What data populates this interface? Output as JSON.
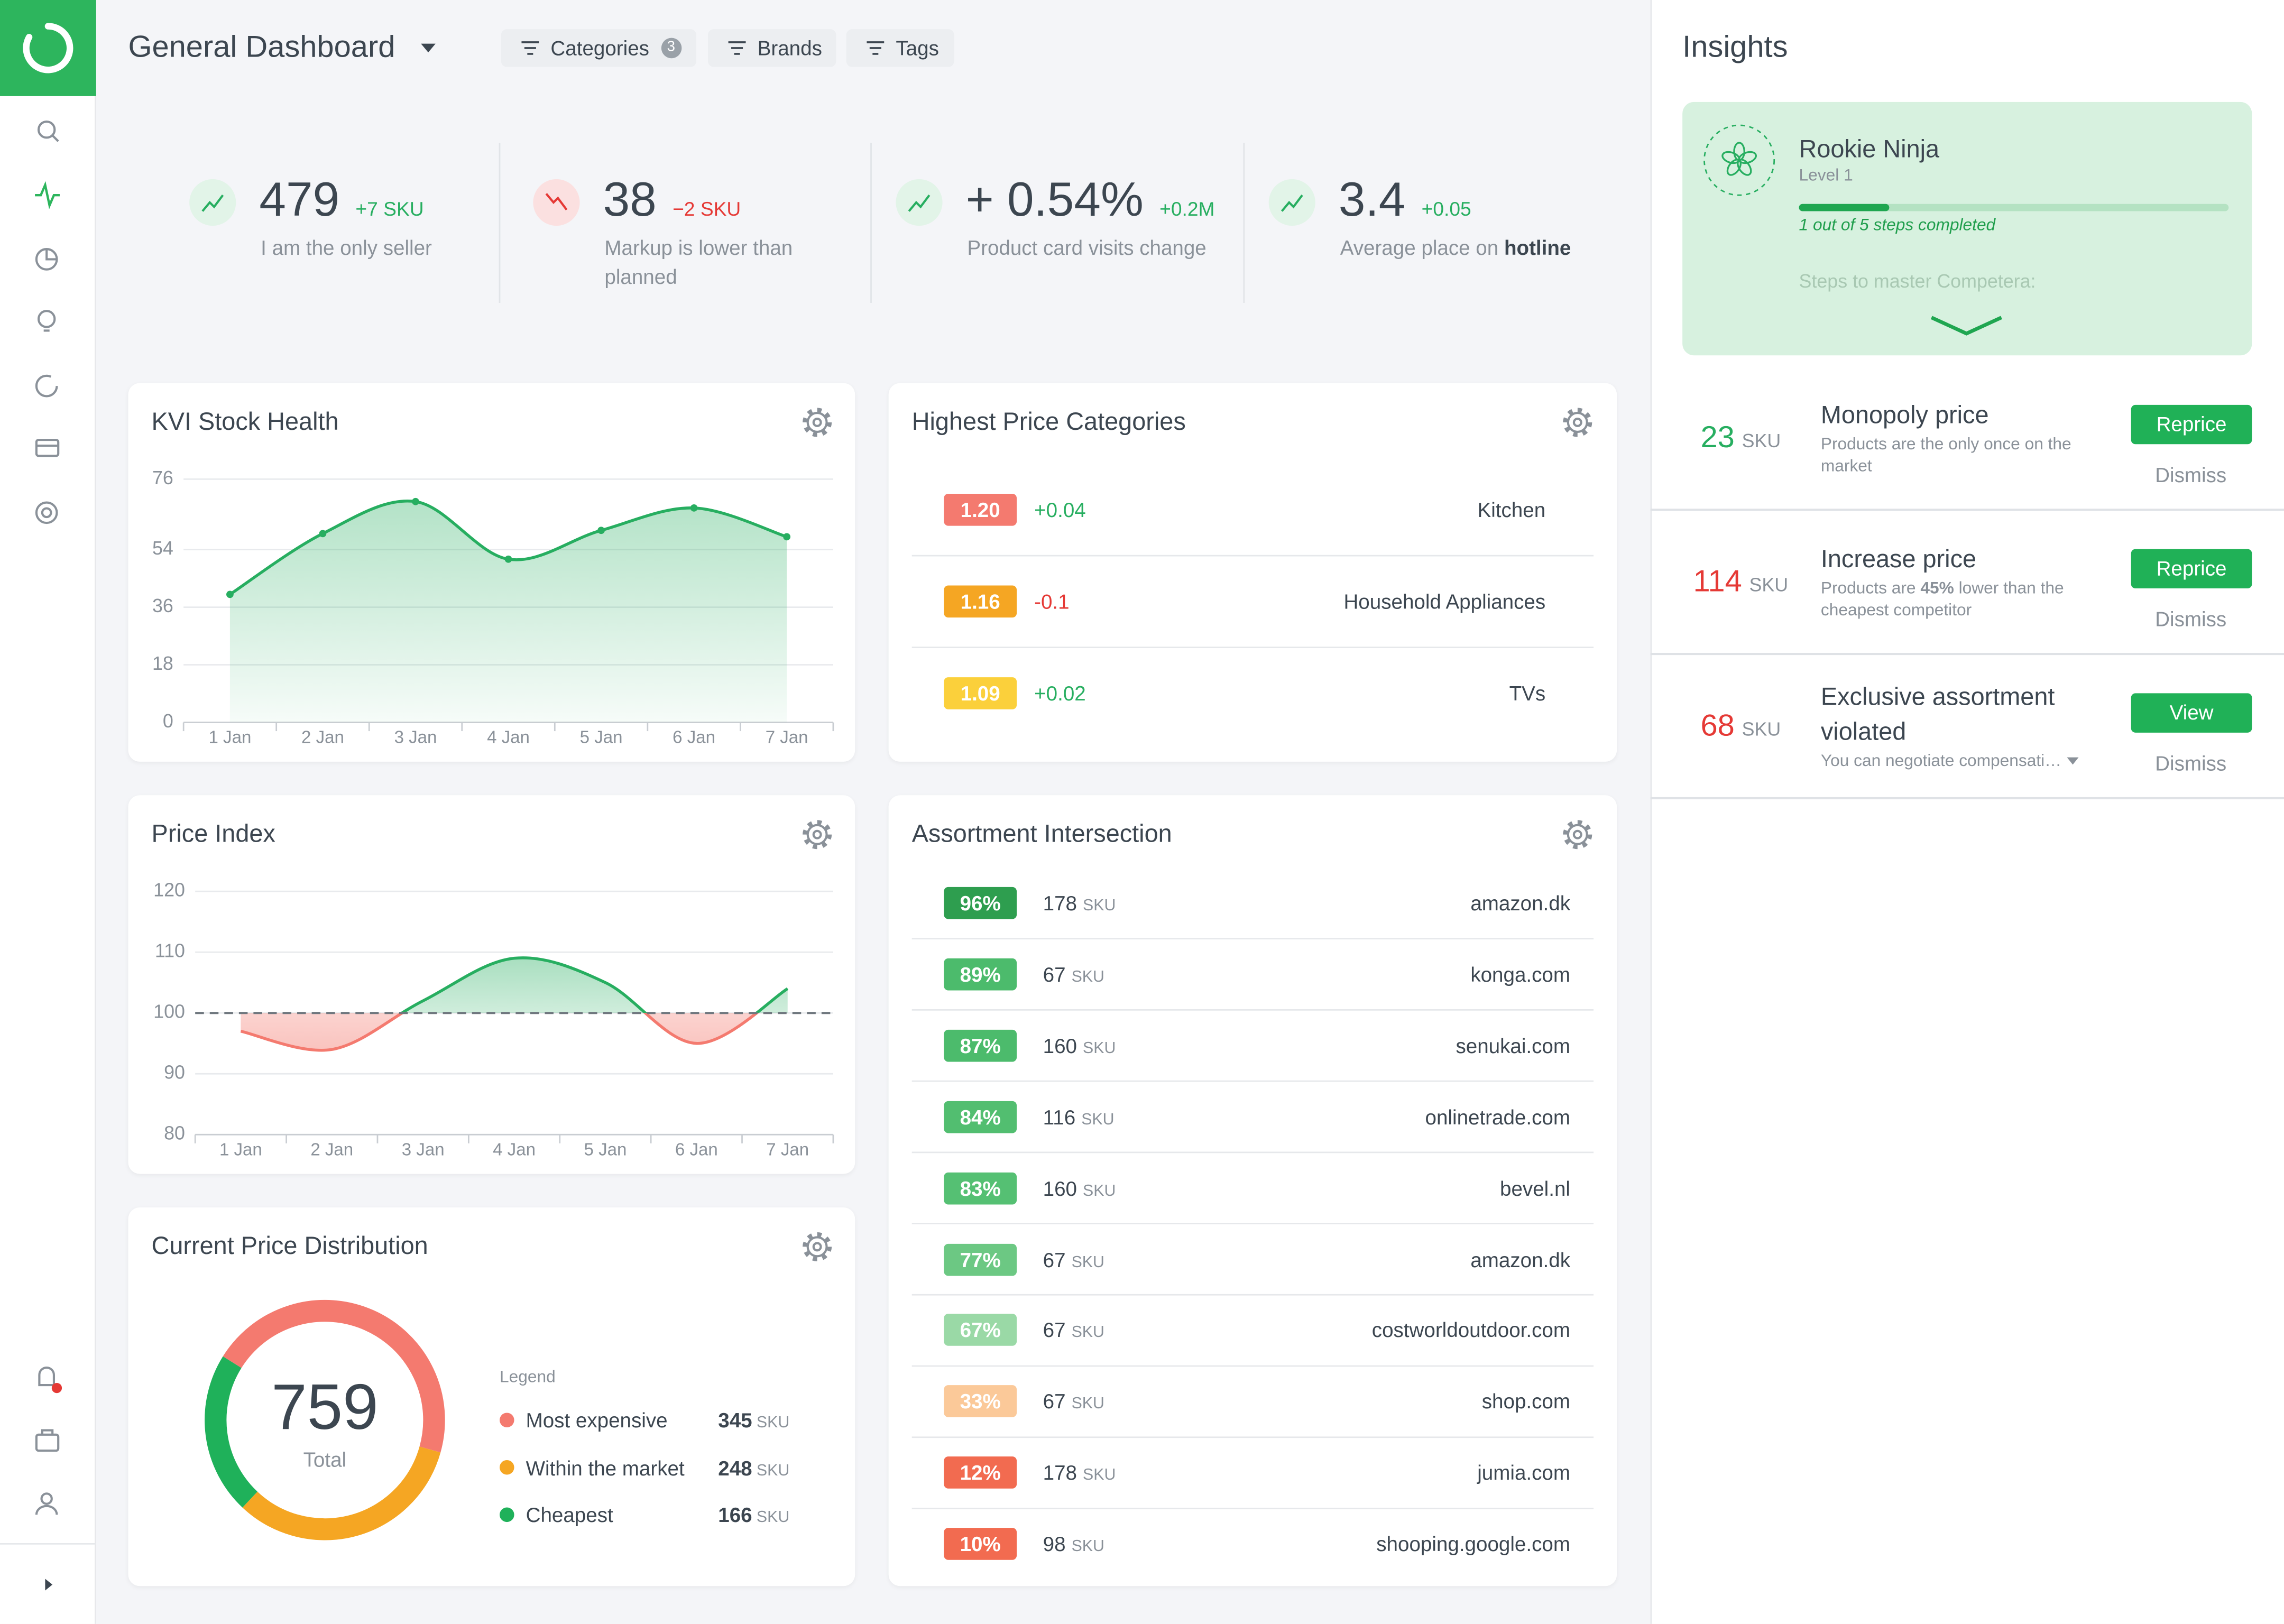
{
  "header": {
    "title": "General Dashboard",
    "filters": [
      {
        "label": "Categories",
        "count": 3
      },
      {
        "label": "Brands"
      },
      {
        "label": "Tags"
      }
    ]
  },
  "kpis": [
    {
      "value": "479",
      "delta": "+7 SKU",
      "label": "I am the only seller",
      "trend": "up"
    },
    {
      "value": "38",
      "delta": "−2 SKU",
      "label": "Markup is lower than planned",
      "trend": "down"
    },
    {
      "value": "+ 0.54%",
      "delta": "+0.2M",
      "label": "Product card visits change",
      "trend": "up"
    },
    {
      "value": "3.4",
      "delta": "+0.05",
      "label": "Average place on ",
      "label_strong": "hotline",
      "trend": "up"
    }
  ],
  "kvi_stock_health": {
    "type": "area",
    "title": "KVI Stock Health",
    "categories": [
      "1 Jan",
      "2 Jan",
      "3 Jan",
      "4 Jan",
      "5 Jan",
      "6 Jan",
      "7 Jan"
    ],
    "values": [
      40,
      59,
      69,
      51,
      60,
      67,
      58
    ],
    "ylim": [
      0,
      76
    ],
    "yticks": [
      0,
      18,
      36,
      54,
      76
    ],
    "color": "#27ae60",
    "grid": true
  },
  "highest_price_categories": {
    "title": "Highest Price Categories",
    "rows": [
      {
        "score": "1.20",
        "change": "+0.04",
        "name": "Kitchen",
        "color": "#f47a6f",
        "trend": "up"
      },
      {
        "score": "1.16",
        "change": "-0.1",
        "name": "Household Appliances",
        "color": "#f5a623",
        "trend": "down"
      },
      {
        "score": "1.09",
        "change": "+0.02",
        "name": "TVs",
        "color": "#fbd03b",
        "trend": "up"
      }
    ]
  },
  "price_index": {
    "type": "line",
    "title": "Price Index",
    "categories": [
      "1 Jan",
      "2 Jan",
      "3 Jan",
      "4 Jan",
      "5 Jan",
      "6 Jan",
      "7 Jan"
    ],
    "values": [
      97,
      94,
      102,
      109,
      105,
      95,
      104
    ],
    "ylim": [
      80,
      120
    ],
    "yticks": [
      80,
      90,
      100,
      110,
      120
    ],
    "reference": 100,
    "color_above": "#27ae60",
    "color_below": "#f47a6f",
    "grid": true
  },
  "price_distribution": {
    "type": "donut",
    "title": "Current Price Distribution",
    "total": "759",
    "total_label": "Total",
    "legend_title": "Legend",
    "unit": "SKU",
    "series": [
      {
        "name": "Most expensive",
        "value": 345,
        "color": "#f47a6f"
      },
      {
        "name": "Within the market",
        "value": 248,
        "color": "#f5a623"
      },
      {
        "name": "Cheapest",
        "value": 166,
        "color": "#1fb15a"
      }
    ]
  },
  "assortment_intersection": {
    "title": "Assortment Intersection",
    "unit": "SKU",
    "rows": [
      {
        "share": "96%",
        "sku": "178",
        "site": "amazon.dk",
        "color": "#2e9e4f"
      },
      {
        "share": "89%",
        "sku": "67",
        "site": "konga.com",
        "color": "#4cbb6c"
      },
      {
        "share": "87%",
        "sku": "160",
        "site": "senukai.com",
        "color": "#4cbb6c"
      },
      {
        "share": "84%",
        "sku": "116",
        "site": "onlinetrade.com",
        "color": "#52be70"
      },
      {
        "share": "83%",
        "sku": "160",
        "site": "bevel.nl",
        "color": "#55c073"
      },
      {
        "share": "77%",
        "sku": "67",
        "site": "amazon.dk",
        "color": "#6cc883"
      },
      {
        "share": "67%",
        "sku": "67",
        "site": "costworldoutdoor.com",
        "color": "#9ad9a6"
      },
      {
        "share": "33%",
        "sku": "67",
        "site": "shop.com",
        "color": "#fbc999"
      },
      {
        "share": "12%",
        "sku": "178",
        "site": "jumia.com",
        "color": "#f26b50"
      },
      {
        "share": "10%",
        "sku": "98",
        "site": "shooping.google.com",
        "color": "#f26b50"
      }
    ]
  },
  "insights": {
    "title": "Insights",
    "unit": "SKU",
    "achievement": {
      "name": "Rookie Ninja",
      "level": "Level 1",
      "progress": "1 out of 5 steps completed",
      "next": "Steps to master Competera:"
    },
    "items": [
      {
        "count": "23",
        "color": "#27ae60",
        "title": "Monopoly price",
        "desc": [
          {
            "text": "Products are the only once on the market"
          }
        ],
        "action": "Reprice",
        "dismiss": "Dismiss"
      },
      {
        "count": "114",
        "color": "#e53935",
        "title": "Increase price",
        "desc": [
          {
            "text": "Products are "
          },
          {
            "text": "45%",
            "strong": true
          },
          {
            "text": " lower than the cheapest competitor"
          }
        ],
        "action": "Reprice",
        "dismiss": "Dismiss"
      },
      {
        "count": "68",
        "color": "#e53935",
        "title": "Exclusive assortment violated",
        "desc": [
          {
            "text": "You can negotiate compensati…"
          }
        ],
        "action": "View",
        "dismiss": "Dismiss",
        "more": true
      }
    ]
  }
}
